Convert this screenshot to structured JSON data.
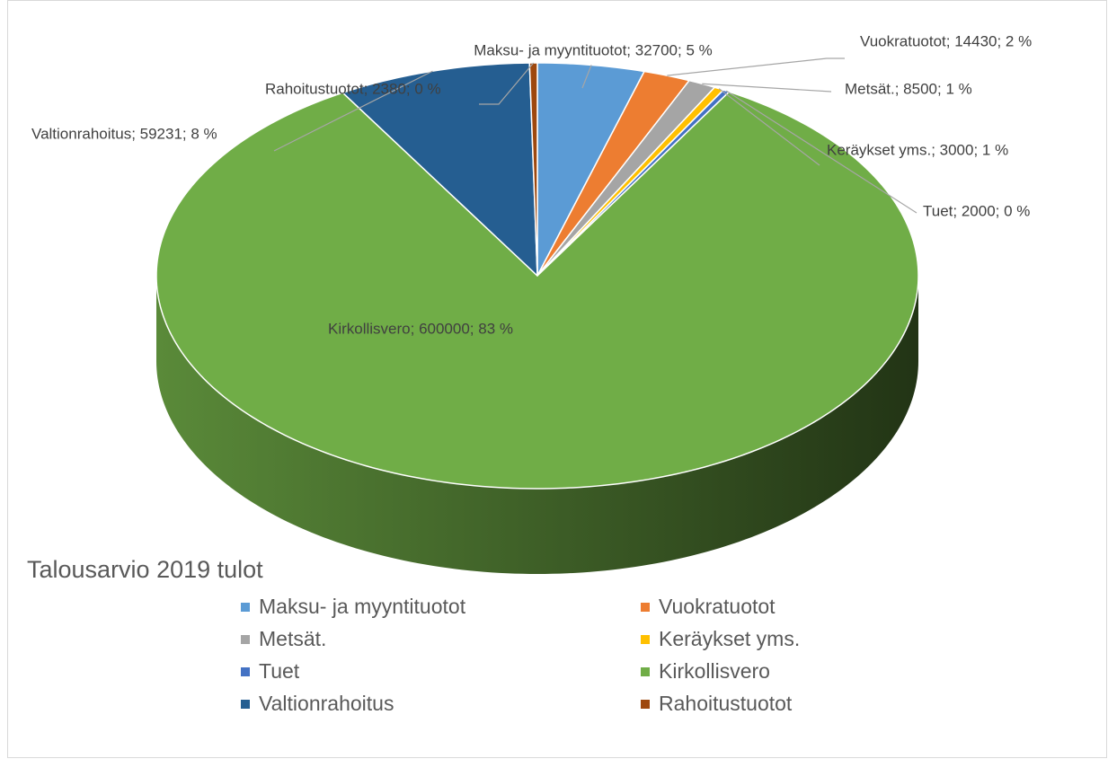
{
  "chart_data": {
    "type": "pie3d",
    "title": "Talousarvio 2019 tulot",
    "categories": [
      "Maksu- ja myyntituotot",
      "Vuokratuotot",
      "Metsät.",
      "Keräykset yms.",
      "Tuet",
      "Kirkollisvero",
      "Valtionrahoitus",
      "Rahoitustuotot"
    ],
    "values": [
      32700,
      14430,
      8500,
      3000,
      2000,
      600000,
      59231,
      2380
    ],
    "value_labels": [
      "Maksu- ja myyntituotot; 32700; 5 %",
      "Vuokratuotot; 14430; 2 %",
      "Metsät.; 8500; 1 %",
      "Keräykset yms.; 3000; 1 %",
      "Tuet; 2000; 0 %",
      "Kirkollisvero; 600000; 83 %",
      "Valtionrahoitus; 59231; 8 %",
      "Rahoitustuotot; 2380; 0 %"
    ],
    "colors": [
      "#5b9bd5",
      "#ed7d31",
      "#a5a5a5",
      "#ffc000",
      "#4472c4",
      "#70ad47",
      "#255e91",
      "#9e480e"
    ],
    "legend": "bottom"
  }
}
